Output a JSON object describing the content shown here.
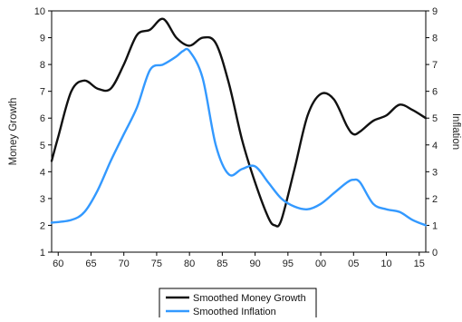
{
  "chart_data": {
    "type": "line",
    "title": "",
    "xlabel": "",
    "ylabel_left": "Money Growth",
    "ylabel_right": "Inflation",
    "xlim": [
      1959,
      2016
    ],
    "ylim_left": [
      1,
      10
    ],
    "ylim_right": [
      0,
      9
    ],
    "xticks": [
      1960,
      1965,
      1970,
      1975,
      1980,
      1985,
      1990,
      1995,
      2000,
      2005,
      2010,
      2015
    ],
    "xtick_labels": [
      "60",
      "65",
      "70",
      "75",
      "80",
      "85",
      "90",
      "95",
      "00",
      "05",
      "10",
      "15"
    ],
    "yticks_left": [
      1,
      2,
      3,
      4,
      5,
      6,
      7,
      8,
      9,
      10
    ],
    "yticks_right": [
      0,
      1,
      2,
      3,
      4,
      5,
      6,
      7,
      8,
      9
    ],
    "grid": false,
    "legend_placement": "bottom-center",
    "series": [
      {
        "name": "Smoothed Money Growth",
        "axis": "left",
        "color": "#111111",
        "x": [
          1959,
          1960,
          1962,
          1964,
          1966,
          1968,
          1970,
          1972,
          1974,
          1976,
          1978,
          1980,
          1982,
          1984,
          1986,
          1988,
          1990,
          1992,
          1993,
          1994,
          1996,
          1998,
          2000,
          2002,
          2004,
          2005,
          2006,
          2008,
          2010,
          2012,
          2014,
          2016
        ],
        "values": [
          4.4,
          5.3,
          7.0,
          7.4,
          7.1,
          7.1,
          8.0,
          9.1,
          9.3,
          9.7,
          9.0,
          8.7,
          9.0,
          8.8,
          7.3,
          5.2,
          3.6,
          2.3,
          2.0,
          2.2,
          4.1,
          6.1,
          6.9,
          6.7,
          5.7,
          5.4,
          5.5,
          5.9,
          6.1,
          6.5,
          6.3,
          6.0
        ]
      },
      {
        "name": "Smoothed Inflation",
        "axis": "right",
        "color": "#3399ff",
        "x": [
          1959,
          1962,
          1964,
          1966,
          1968,
          1970,
          1972,
          1974,
          1976,
          1978,
          1979,
          1980,
          1982,
          1984,
          1986,
          1988,
          1990,
          1992,
          1994,
          1996,
          1998,
          2000,
          2002,
          2004,
          2005,
          2006,
          2008,
          2010,
          2012,
          2014,
          2016
        ],
        "values": [
          1.1,
          1.2,
          1.5,
          2.3,
          3.4,
          4.4,
          5.4,
          6.8,
          7.0,
          7.3,
          7.5,
          7.5,
          6.5,
          4.0,
          2.9,
          3.1,
          3.2,
          2.6,
          2.0,
          1.7,
          1.6,
          1.8,
          2.2,
          2.6,
          2.7,
          2.6,
          1.8,
          1.6,
          1.5,
          1.2,
          1.0
        ]
      }
    ]
  }
}
